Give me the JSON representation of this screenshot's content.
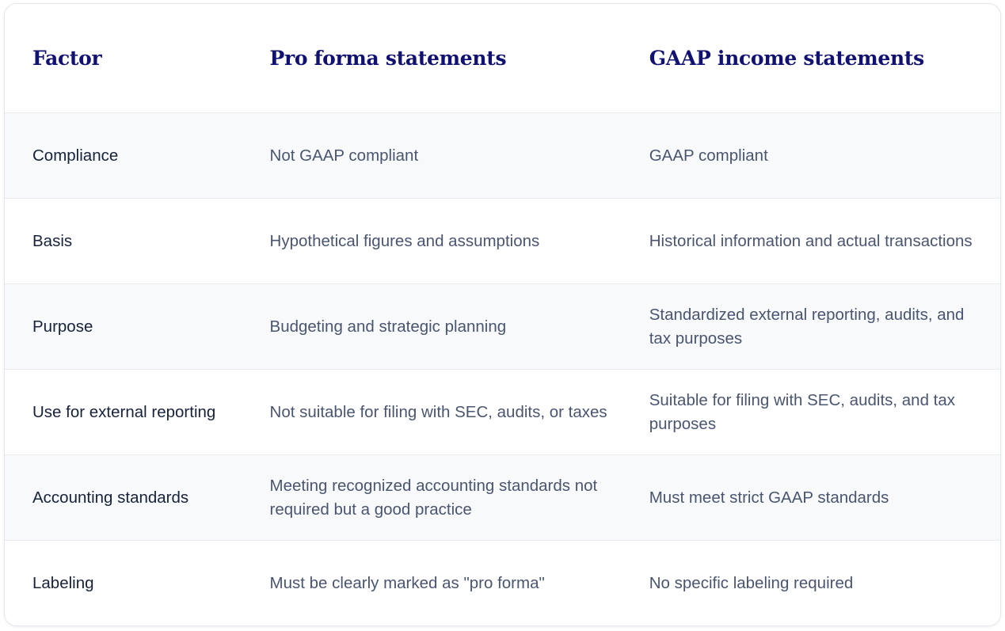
{
  "table": {
    "headers": [
      "Factor",
      "Pro forma statements",
      "GAAP income statements"
    ],
    "rows": [
      {
        "factor": "Compliance",
        "pro_forma": "Not GAAP compliant",
        "gaap": "GAAP compliant"
      },
      {
        "factor": "Basis",
        "pro_forma": "Hypothetical figures and assumptions",
        "gaap": "Historical information and actual transactions"
      },
      {
        "factor": "Purpose",
        "pro_forma": "Budgeting and strategic planning",
        "gaap": "Standardized external reporting, audits, and tax purposes"
      },
      {
        "factor": "Use for external reporting",
        "pro_forma": "Not suitable for filing with SEC, audits, or taxes",
        "gaap": "Suitable for filing with SEC, audits, and tax purposes"
      },
      {
        "factor": "Accounting standards",
        "pro_forma": "Meeting recognized accounting standards not required but a good practice",
        "gaap": "Must meet strict GAAP standards"
      },
      {
        "factor": "Labeling",
        "pro_forma": "Must be clearly marked as \"pro forma\"",
        "gaap": "No specific labeling required"
      }
    ]
  },
  "colors": {
    "header_text": "#101170",
    "factor_text": "#17223b",
    "value_text": "#4a5570",
    "stripe_background": "#f7f9fb",
    "border": "#e8ecf1"
  }
}
